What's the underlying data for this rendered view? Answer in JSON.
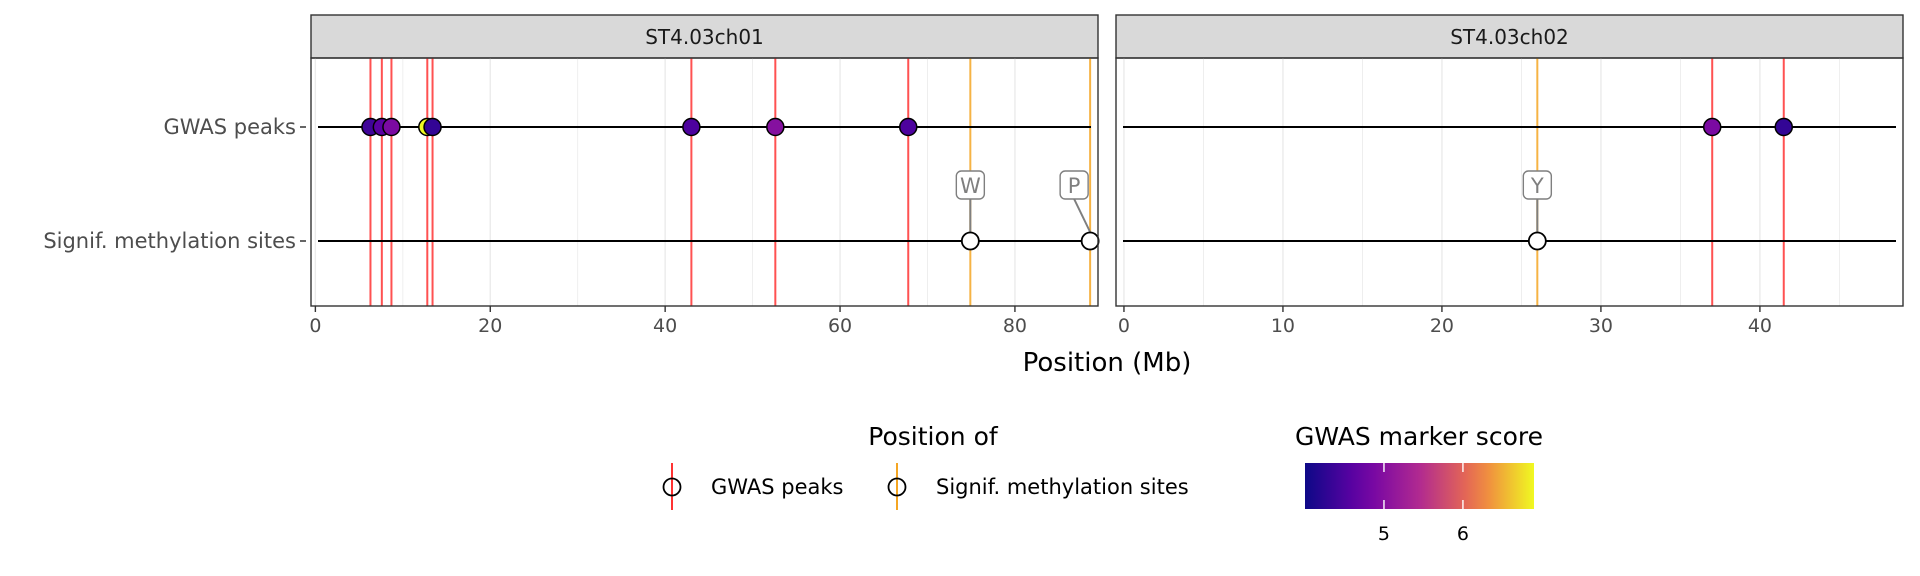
{
  "chart_data": {
    "type": "scatter",
    "xlabel": "Position (Mb)",
    "row_labels": [
      "GWAS peaks",
      "Signif. methylation sites"
    ],
    "panels": [
      {
        "title": "ST4.03ch01",
        "xlim": [
          -0.5,
          89.5
        ],
        "xticks": [
          0,
          20,
          40,
          60,
          80
        ],
        "gwas_peaks": [
          {
            "x": 6.3,
            "score": 4.4
          },
          {
            "x": 7.6,
            "score": 4.6
          },
          {
            "x": 8.7,
            "score": 4.9
          },
          {
            "x": 12.8,
            "score": 6.9
          },
          {
            "x": 13.4,
            "score": 4.3
          },
          {
            "x": 43.0,
            "score": 4.5
          },
          {
            "x": 52.6,
            "score": 5.0
          },
          {
            "x": 67.8,
            "score": 4.5
          }
        ],
        "methylation_sites": [
          {
            "x": 74.9,
            "label": "W"
          },
          {
            "x": 88.6,
            "label": "P"
          }
        ]
      },
      {
        "title": "ST4.03ch02",
        "xlim": [
          -0.5,
          49.0
        ],
        "xticks": [
          0,
          10,
          20,
          30,
          40
        ],
        "gwas_peaks": [
          {
            "x": 37.0,
            "score": 4.9
          },
          {
            "x": 41.5,
            "score": 4.3
          }
        ],
        "methylation_sites": [
          {
            "x": 26.0,
            "label": "Y"
          }
        ]
      }
    ],
    "legend_position": {
      "title": "Position of",
      "entries": [
        {
          "label": "GWAS peaks",
          "color": "#ff3333"
        },
        {
          "label": "Signif. methylation sites",
          "color": "#f5a623"
        }
      ]
    },
    "legend_score": {
      "title": "GWAS marker score",
      "min": 4.0,
      "max": 6.9,
      "ticks": [
        5,
        6
      ]
    }
  }
}
